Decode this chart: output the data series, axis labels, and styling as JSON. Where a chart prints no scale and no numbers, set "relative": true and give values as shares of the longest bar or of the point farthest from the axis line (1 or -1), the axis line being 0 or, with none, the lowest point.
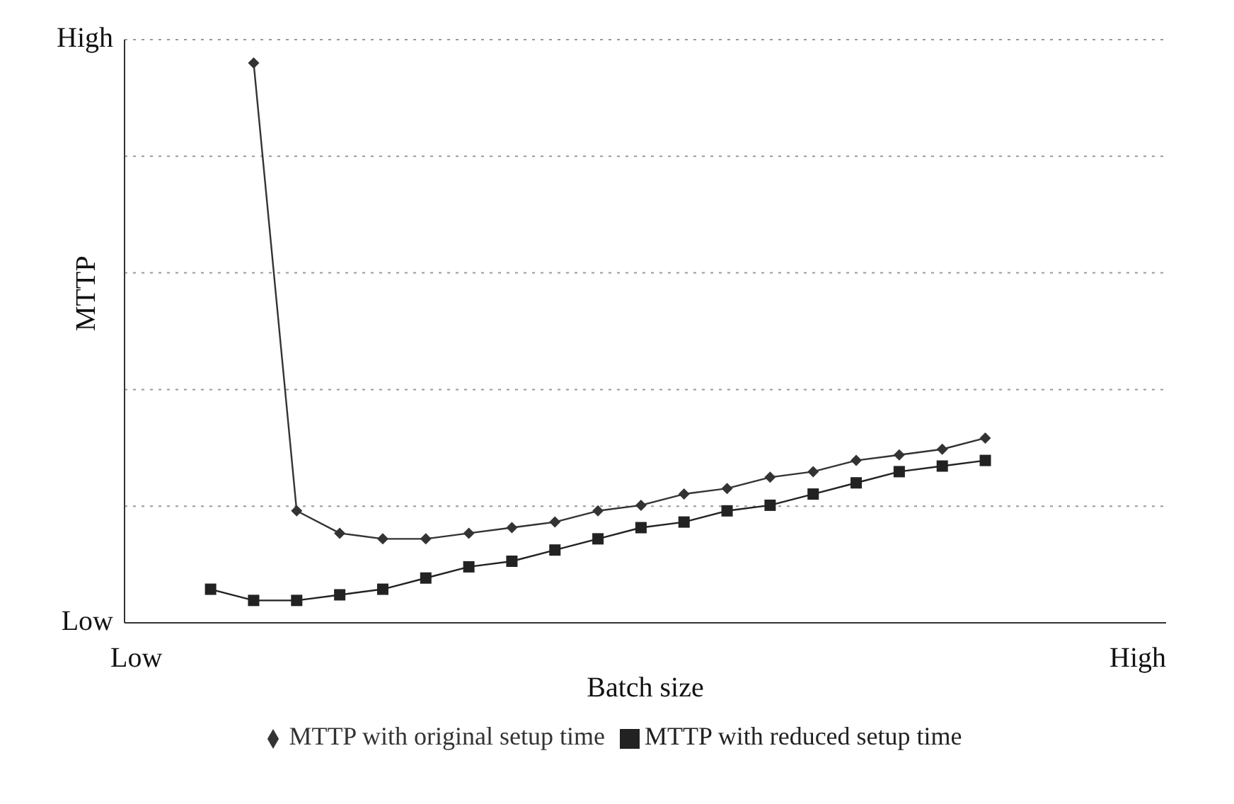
{
  "chart_data": {
    "type": "line",
    "xlabel": "Batch size",
    "ylabel": "MTTP",
    "relative": true,
    "categories": [
      null,
      null,
      null,
      null,
      null,
      null,
      null,
      null,
      null,
      null,
      null,
      null,
      null,
      null,
      null,
      null,
      null,
      null,
      null
    ],
    "annotations": [
      "High",
      "Low",
      "Low",
      "High"
    ],
    "grid": "y",
    "legend": "bottom",
    "line_style": "solid",
    "series": [
      {
        "name": "MTTP with original setup time",
        "color": "#333333",
        "marker": "diamond",
        "values": [
          null,
          1,
          0.2,
          0.16,
          0.15,
          0.15,
          0.16,
          0.17,
          0.18,
          0.2,
          0.21,
          0.23,
          0.24,
          0.26,
          0.27,
          0.29,
          0.3,
          0.31,
          0.33
        ]
      },
      {
        "name": "MTTP with reduced setup time",
        "color": "#222222",
        "marker": "square",
        "values": [
          0.06,
          0.04,
          0.04,
          0.05,
          0.06,
          0.08,
          0.1,
          0.11,
          0.13,
          0.15,
          0.17,
          0.18,
          0.2,
          0.21,
          0.23,
          0.25,
          0.27,
          0.28,
          0.29
        ]
      }
    ]
  }
}
